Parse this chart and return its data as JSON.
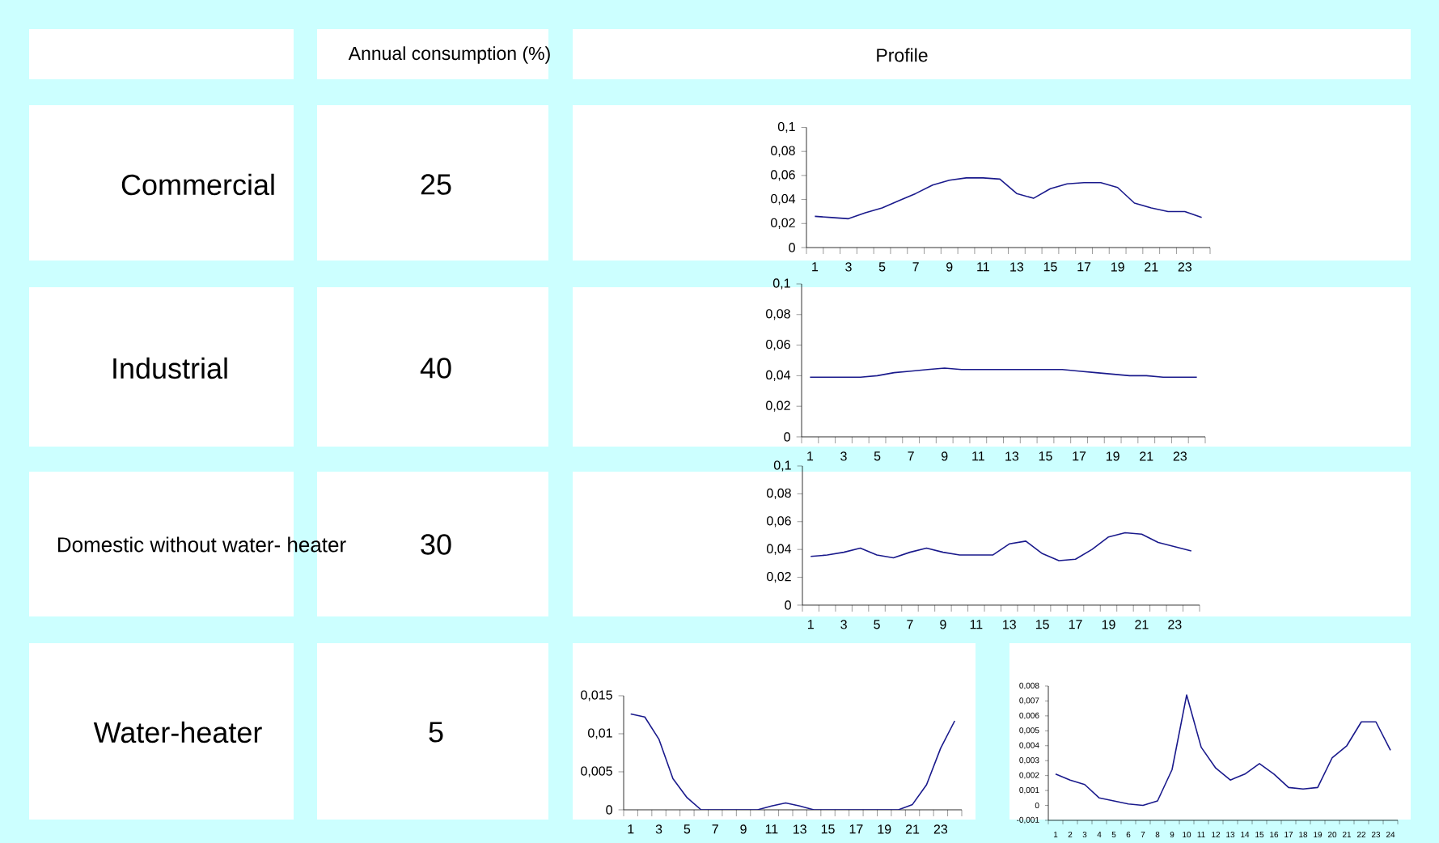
{
  "chart_data": [
    {
      "type": "other",
      "annotations": [
        "Annual consumption (%)",
        "Profile"
      ],
      "categories": [
        "Commercial",
        "Industrial",
        "Domestic without water- heater",
        "Water-heater"
      ],
      "values": [
        25,
        40,
        30,
        5
      ],
      "data_labels": true
    },
    {
      "type": "line",
      "categories": [
        "1",
        null,
        "3",
        null,
        "5",
        null,
        "7",
        null,
        "9",
        null,
        "11",
        null,
        "13",
        null,
        "15",
        null,
        "17",
        null,
        "19",
        null,
        "21",
        null,
        "23",
        null
      ],
      "ylim": [
        0,
        0.1
      ],
      "yticks": [
        0,
        {
          "value": 0.02,
          "label": "0,02"
        },
        {
          "value": 0.04,
          "label": "0,04"
        },
        {
          "value": 0.06,
          "label": "0,06"
        },
        {
          "value": 0.08,
          "label": "0,08"
        },
        {
          "value": 0.1,
          "label": "0,1"
        }
      ],
      "color": "#1a1a8c",
      "values": [
        0.026,
        0.025,
        0.024,
        0.029,
        0.033,
        0.039,
        0.045,
        0.052,
        0.056,
        0.058,
        0.058,
        0.057,
        0.045,
        0.041,
        0.049,
        0.053,
        0.054,
        0.054,
        0.05,
        0.037,
        0.033,
        0.03,
        0.03,
        0.025
      ]
    },
    {
      "type": "line",
      "categories": [
        "1",
        null,
        "3",
        null,
        "5",
        null,
        "7",
        null,
        "9",
        null,
        "11",
        null,
        "13",
        null,
        "15",
        null,
        "17",
        null,
        "19",
        null,
        "21",
        null,
        "23",
        null
      ],
      "ylim": [
        0,
        0.1
      ],
      "yticks": [
        0,
        {
          "value": 0.02,
          "label": "0,02"
        },
        {
          "value": 0.04,
          "label": "0,04"
        },
        {
          "value": 0.06,
          "label": "0,06"
        },
        {
          "value": 0.08,
          "label": "0,08"
        },
        {
          "value": 0.1,
          "label": "0,1"
        }
      ],
      "color": "#1a1a8c",
      "values": [
        0.039,
        0.039,
        0.039,
        0.039,
        0.04,
        0.042,
        0.043,
        0.044,
        0.045,
        0.044,
        0.044,
        0.044,
        0.044,
        0.044,
        0.044,
        0.044,
        0.043,
        0.042,
        0.041,
        0.04,
        0.04,
        0.039,
        0.039,
        0.039
      ]
    },
    {
      "type": "line",
      "categories": [
        "1",
        null,
        "3",
        null,
        "5",
        null,
        "7",
        null,
        "9",
        null,
        "11",
        null,
        "13",
        null,
        "15",
        null,
        "17",
        null,
        "19",
        null,
        "21",
        null,
        "23",
        null
      ],
      "ylim": [
        0,
        0.1
      ],
      "yticks": [
        0,
        {
          "value": 0.02,
          "label": "0,02"
        },
        {
          "value": 0.04,
          "label": "0,04"
        },
        {
          "value": 0.06,
          "label": "0,06"
        },
        {
          "value": 0.08,
          "label": "0,08"
        },
        {
          "value": 0.1,
          "label": "0,1"
        }
      ],
      "color": "#1a1a8c",
      "values": [
        0.035,
        0.036,
        0.038,
        0.041,
        0.036,
        0.034,
        0.038,
        0.041,
        0.038,
        0.036,
        0.036,
        0.036,
        0.044,
        0.046,
        0.037,
        0.032,
        0.033,
        0.04,
        0.049,
        0.052,
        0.051,
        0.045,
        0.042,
        0.039
      ]
    },
    {
      "type": "line",
      "categories": [
        "1",
        null,
        "3",
        null,
        "5",
        null,
        "7",
        null,
        "9",
        null,
        "11",
        null,
        "13",
        null,
        "15",
        null,
        "17",
        null,
        "19",
        null,
        "21",
        null,
        "23",
        null
      ],
      "ylim": [
        0,
        0.015
      ],
      "yticks": [
        0,
        {
          "value": 0.005,
          "label": "0,005"
        },
        {
          "value": 0.01,
          "label": "0,01"
        },
        {
          "value": 0.015,
          "label": "0,015"
        }
      ],
      "color": "#1a1a8c",
      "values": [
        0.0126,
        0.0122,
        0.0093,
        0.0041,
        0.0016,
        0,
        0,
        0,
        0,
        0,
        0.0005,
        0.0009,
        0.0005,
        0,
        0,
        0,
        0,
        0,
        0,
        0,
        0.0007,
        0.0033,
        0.0081,
        0.0117
      ]
    },
    {
      "type": "line",
      "categories": [
        "1",
        "2",
        "3",
        "4",
        "5",
        "6",
        "7",
        "8",
        "9",
        "10",
        "11",
        "12",
        "13",
        "14",
        "15",
        "16",
        "17",
        "18",
        "19",
        "20",
        "21",
        "22",
        "23",
        "24"
      ],
      "ylim": [
        -0.001,
        0.008
      ],
      "yticks": [
        {
          "value": -0.001,
          "label": "-0,001"
        },
        0,
        {
          "value": 0.001,
          "label": "0,001"
        },
        {
          "value": 0.002,
          "label": "0,002"
        },
        {
          "value": 0.003,
          "label": "0,003"
        },
        {
          "value": 0.004,
          "label": "0,004"
        },
        {
          "value": 0.005,
          "label": "0,005"
        },
        {
          "value": 0.006,
          "label": "0,006"
        },
        {
          "value": 0.007,
          "label": "0,007"
        },
        {
          "value": 0.008,
          "label": "0,008"
        }
      ],
      "color": "#1a1a8c",
      "values": [
        0.0021,
        0.0017,
        0.0014,
        0.0005,
        0.0003,
        0.0001,
        0,
        0.0003,
        0.0024,
        0.0074,
        0.0039,
        0.0025,
        0.0017,
        0.0021,
        0.0028,
        0.0021,
        0.0012,
        0.0011,
        0.0012,
        0.0032,
        0.004,
        0.0056,
        0.0056,
        0.0037
      ]
    }
  ]
}
